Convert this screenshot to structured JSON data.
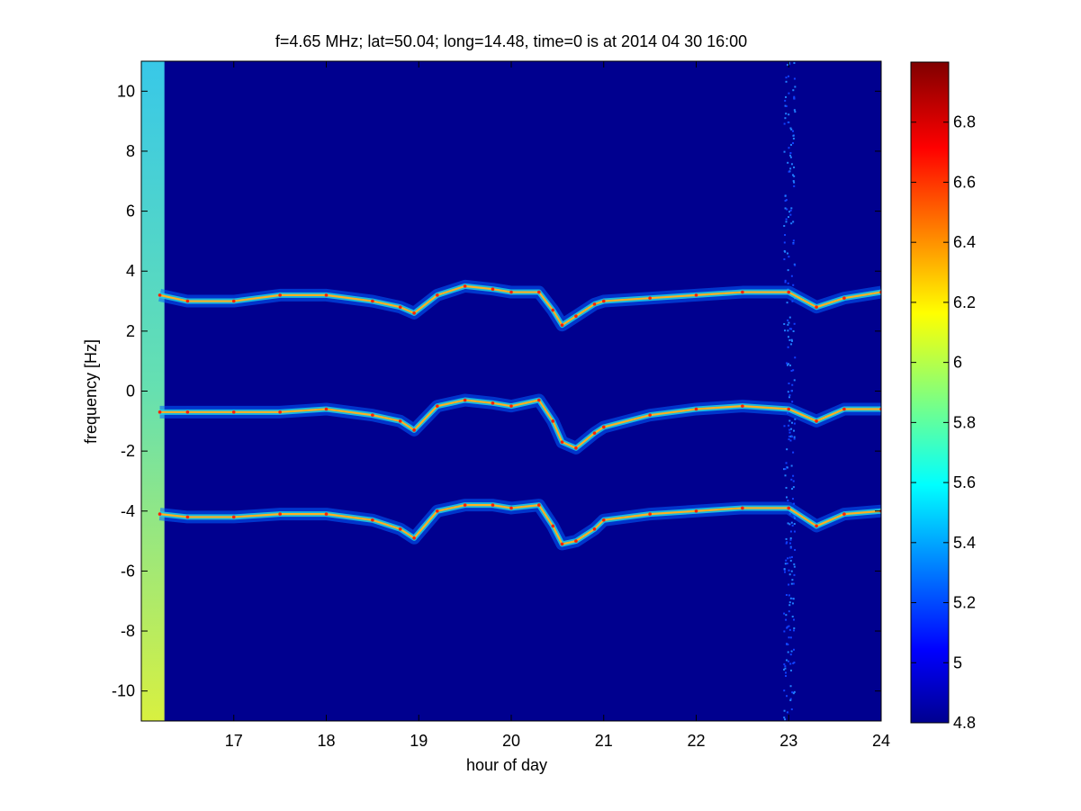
{
  "chart_data": {
    "type": "heatmap",
    "title": "f=4.65 MHz;  lat=50.04; long=14.48, time=0 is at 2014 04 30 16:00",
    "xlabel": "hour of day",
    "ylabel": "frequency [Hz]",
    "xlim": [
      16,
      24
    ],
    "ylim": [
      -11,
      11
    ],
    "xticks": [
      17,
      18,
      19,
      20,
      21,
      22,
      23,
      24
    ],
    "yticks": [
      -10,
      -8,
      -6,
      -4,
      -2,
      0,
      2,
      4,
      6,
      8,
      10
    ],
    "colormap": "jet",
    "clim": [
      4.8,
      7.0
    ],
    "colorbar_ticks": [
      4.8,
      5,
      5.2,
      5.4,
      5.6,
      5.8,
      6,
      6.2,
      6.4,
      6.6,
      6.8
    ],
    "background_value": 4.8,
    "initial_column": {
      "x_range": [
        16.0,
        16.25
      ],
      "value_top": 5.5,
      "value_bottom": 6.3
    },
    "vertical_noise_band": {
      "x": 23.0,
      "half_width": 0.06
    },
    "traces": [
      {
        "x": [
          16.2,
          16.5,
          17.0,
          17.5,
          18.0,
          18.5,
          18.8,
          18.95,
          19.2,
          19.5,
          19.8,
          20.0,
          20.3,
          20.45,
          20.55,
          20.7,
          20.9,
          21.0,
          21.5,
          22.0,
          22.5,
          23.0,
          23.3,
          23.6,
          24.0
        ],
        "y": [
          3.2,
          3.0,
          3.0,
          3.2,
          3.2,
          3.0,
          2.8,
          2.6,
          3.2,
          3.5,
          3.4,
          3.3,
          3.3,
          2.7,
          2.2,
          2.5,
          2.9,
          3.0,
          3.1,
          3.2,
          3.3,
          3.3,
          2.8,
          3.1,
          3.3
        ]
      },
      {
        "x": [
          16.2,
          16.5,
          17.0,
          17.5,
          18.0,
          18.5,
          18.8,
          18.95,
          19.2,
          19.5,
          19.8,
          20.0,
          20.3,
          20.45,
          20.55,
          20.7,
          20.9,
          21.0,
          21.5,
          22.0,
          22.5,
          23.0,
          23.3,
          23.6,
          24.0
        ],
        "y": [
          -0.7,
          -0.7,
          -0.7,
          -0.7,
          -0.6,
          -0.8,
          -1.0,
          -1.3,
          -0.5,
          -0.3,
          -0.4,
          -0.5,
          -0.3,
          -1.0,
          -1.7,
          -1.9,
          -1.4,
          -1.2,
          -0.8,
          -0.6,
          -0.5,
          -0.6,
          -1.0,
          -0.6,
          -0.6
        ]
      },
      {
        "x": [
          16.2,
          16.5,
          17.0,
          17.5,
          18.0,
          18.5,
          18.8,
          18.95,
          19.2,
          19.5,
          19.8,
          20.0,
          20.3,
          20.45,
          20.55,
          20.7,
          20.9,
          21.0,
          21.5,
          22.0,
          22.5,
          23.0,
          23.3,
          23.6,
          24.0
        ],
        "y": [
          -4.1,
          -4.2,
          -4.2,
          -4.1,
          -4.1,
          -4.3,
          -4.6,
          -4.9,
          -4.0,
          -3.8,
          -3.8,
          -3.9,
          -3.8,
          -4.5,
          -5.1,
          -5.0,
          -4.6,
          -4.3,
          -4.1,
          -4.0,
          -3.9,
          -3.9,
          -4.5,
          -4.1,
          -4.0
        ]
      }
    ]
  }
}
